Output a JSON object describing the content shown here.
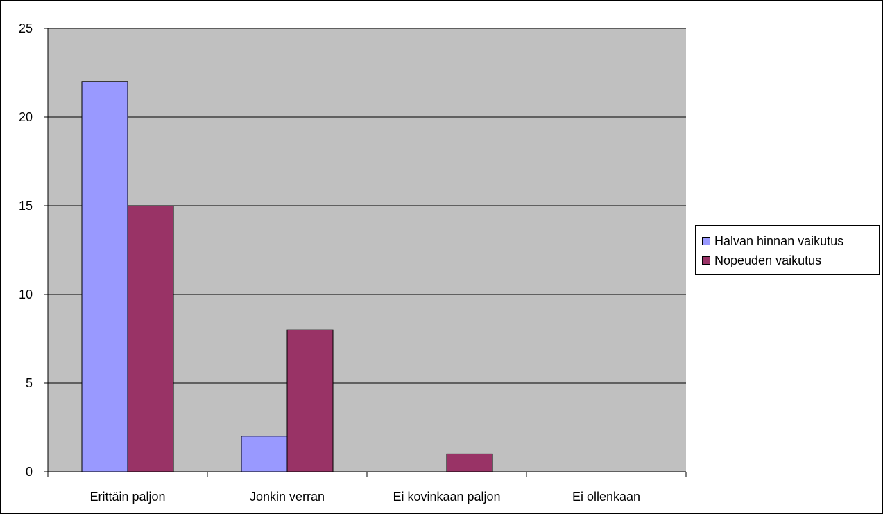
{
  "chart_data": {
    "type": "bar",
    "categories": [
      "Erittäin paljon",
      "Jonkin verran",
      "Ei kovinkaan paljon",
      "Ei ollenkaan"
    ],
    "series": [
      {
        "name": "Halvan hinnan vaikutus",
        "values": [
          22,
          2,
          0,
          0
        ],
        "color": "#9999ff"
      },
      {
        "name": "Nopeuden vaikutus",
        "values": [
          15,
          8,
          1,
          0
        ],
        "color": "#993366"
      }
    ],
    "ylim": [
      0,
      25
    ],
    "yticks": [
      0,
      5,
      10,
      15,
      20,
      25
    ],
    "grid": true,
    "plot_background": "#c0c0c0",
    "legend_position": "right",
    "title": "",
    "xlabel": "",
    "ylabel": ""
  }
}
